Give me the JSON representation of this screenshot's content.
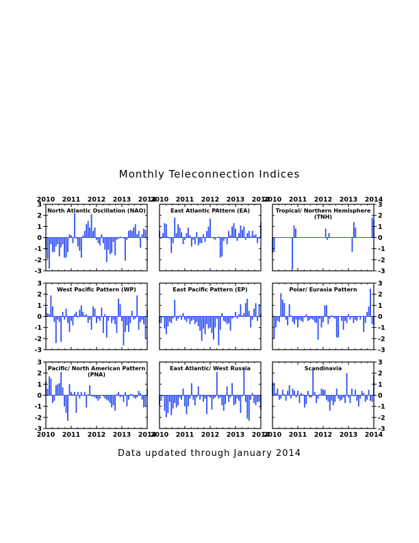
{
  "page": {
    "title": "Monthly Teleconnection Indices",
    "footer": "Data updated through January 2014",
    "bar_color": "#2f4ff0"
  },
  "chart_data": [
    {
      "type": "bar",
      "title": "North Atlantic Oscillation (NAO)",
      "x_start": "2010-01",
      "x_end": "2014-01",
      "xticks": [
        "2010",
        "2011",
        "2012",
        "2013",
        "2014"
      ],
      "ylim": [
        -3,
        3
      ],
      "yticks": [
        "3",
        "2",
        "1",
        "0",
        "-1",
        "-2",
        "-3"
      ],
      "values": [
        -1.1,
        -1.9,
        -2.8,
        -0.6,
        -1.3,
        -1.3,
        -0.8,
        -0.6,
        -1.7,
        -0.9,
        -0.6,
        -1.8,
        -1.8,
        -1.3,
        0.3,
        0.2,
        -0.5,
        2.2,
        -0.1,
        -0.8,
        -1.2,
        -1.8,
        0.2,
        0.6,
        1.2,
        1.5,
        0.9,
        2.1,
        0.6,
        0.9,
        -0.2,
        -0.5,
        -0.7,
        0.3,
        -0.5,
        -1.1,
        -2.2,
        -1.1,
        -1.5,
        -1.4,
        -0.4,
        -1.6,
        -0.2,
        -0.1,
        0.1,
        0.0,
        -0.1,
        -2.1,
        -0.2,
        0.6,
        0.7,
        0.6,
        0.9,
        1.2,
        0.3,
        0.6,
        -0.9,
        0.3,
        0.8,
        0.7,
        -0.2
      ]
    },
    {
      "type": "bar",
      "title": "East Atlantic PAttern (EA)",
      "x_start": "2010-01",
      "x_end": "2014-01",
      "xticks": [
        "2010",
        "2011",
        "2012",
        "2013",
        "2014"
      ],
      "ylim": [
        -3,
        3
      ],
      "yticks": [
        "3",
        "2",
        "1",
        "0",
        "-1",
        "-2",
        "-3"
      ],
      "values": [
        0.6,
        -0.1,
        0.4,
        1.3,
        1.2,
        0.1,
        -0.1,
        -1.4,
        -0.5,
        1.8,
        0.4,
        1.2,
        0.9,
        0.5,
        -0.6,
        -0.2,
        0.4,
        0.9,
        0.2,
        -0.8,
        -0.2,
        -0.6,
        0.5,
        -0.7,
        -0.5,
        -0.5,
        0.3,
        -0.4,
        0.6,
        1.0,
        1.7,
        0.0,
        -0.1,
        -0.2,
        0.0,
        0.1,
        -1.8,
        -1.7,
        -0.3,
        -0.1,
        -0.6,
        0.6,
        0.2,
        1.0,
        1.3,
        0.8,
        -0.3,
        0.4,
        1.1,
        0.7,
        1.0,
        -0.2,
        0.4,
        0.6,
        0.1,
        0.6,
        0.2,
        0.3,
        -0.5,
        -0.1,
        1.4
      ]
    },
    {
      "type": "bar",
      "title": "Tropical/ Northern Hemisphere (TNH)",
      "x_start": "2010-01",
      "x_end": "2014-01",
      "xticks": [
        "2010",
        "2011",
        "2012",
        "2013",
        "2014"
      ],
      "ylim": [
        -3,
        3
      ],
      "yticks": [
        "3",
        "2",
        "1",
        "0",
        "-1",
        "-2",
        "-3"
      ],
      "values": [
        -1.4,
        -1.3,
        0,
        0,
        0,
        0,
        0,
        0,
        0,
        0,
        0,
        0,
        -2.9,
        1.1,
        0.8,
        0,
        0,
        0,
        0,
        0,
        0,
        0,
        0,
        0,
        0,
        0,
        0,
        0,
        0,
        0,
        0,
        0,
        0.8,
        -0.2,
        0.4,
        0,
        0,
        0,
        0,
        0,
        0,
        0,
        0,
        0,
        0,
        0,
        0,
        0,
        -1.3,
        1.4,
        0.9,
        0,
        0,
        0,
        0,
        0,
        0,
        0,
        0,
        0,
        1.8,
        1.6
      ]
    },
    {
      "type": "bar",
      "title": "West Pacific Pattern (WP)",
      "x_start": "2010-01",
      "x_end": "2014-01",
      "xticks": [
        "2010",
        "2011",
        "2012",
        "2013",
        "2014"
      ],
      "ylim": [
        -3,
        3
      ],
      "yticks": [
        "3",
        "2",
        "1",
        "0",
        "-1",
        "-2",
        "-3"
      ],
      "values": [
        0.8,
        0.3,
        0.2,
        1.9,
        0.9,
        -0.5,
        -2.4,
        -0.3,
        -0.5,
        -2.3,
        0.4,
        -0.3,
        0.7,
        -0.6,
        -1.4,
        -0.4,
        -0.8,
        0.2,
        0.4,
        -0.1,
        0.6,
        1.0,
        0.4,
        0.1,
        0.2,
        -0.6,
        -0.3,
        -1.2,
        0.9,
        0.7,
        -0.6,
        -0.2,
        -0.4,
        0.8,
        -1.5,
        0.2,
        -1.9,
        -0.4,
        0.0,
        -0.6,
        -0.3,
        -0.7,
        -1.5,
        1.6,
        1.1,
        -0.4,
        -2.6,
        -1.4,
        -0.8,
        -1.4,
        -0.6,
        0.5,
        -0.3,
        -0.2,
        1.9,
        -1.2,
        -0.5,
        -0.3,
        -0.7,
        -2.0,
        0.6
      ]
    },
    {
      "type": "bar",
      "title": "East Pacific Pattern (EP)",
      "x_start": "2010-01",
      "x_end": "2014-01",
      "xticks": [
        "2010",
        "2011",
        "2012",
        "2013",
        "2014"
      ],
      "ylim": [
        -3,
        3
      ],
      "yticks": [
        "3",
        "2",
        "1",
        "0",
        "-1",
        "-2",
        "-3"
      ],
      "values": [
        -0.6,
        -0.6,
        -0.1,
        -1.1,
        -1.6,
        -0.9,
        -0.5,
        -0.6,
        -0.2,
        1.5,
        -0.4,
        -0.2,
        0.1,
        -0.3,
        0.3,
        -0.3,
        -0.5,
        -0.2,
        -0.7,
        -0.4,
        -0.3,
        -0.7,
        -0.5,
        -0.9,
        -1.3,
        -2.2,
        -1.1,
        -1.6,
        -0.7,
        -1.1,
        -1.0,
        -1.5,
        -2.1,
        -1.0,
        -0.2,
        -2.6,
        -1.2,
        0.3,
        -0.4,
        -0.5,
        -0.7,
        -0.6,
        -1.3,
        -0.2,
        -0.1,
        0.4,
        -0.2,
        0.2,
        1.1,
        0.1,
        0.3,
        1.2,
        1.6,
        0.5,
        -1.0,
        -0.3,
        0.7,
        1.2,
        -0.4,
        1.1,
        0.2
      ]
    },
    {
      "type": "bar",
      "title": "Polar/ Eurasia Pattern",
      "x_start": "2010-01",
      "x_end": "2014-01",
      "xticks": [
        "2010",
        "2011",
        "2012",
        "2013",
        "2014"
      ],
      "ylim": [
        -3,
        3
      ],
      "yticks": [
        "3",
        "2",
        "1",
        "0",
        "-1",
        "-2",
        "-3"
      ],
      "values": [
        0.1,
        -2.0,
        -1.0,
        -0.4,
        -0.5,
        2.1,
        1.5,
        1.2,
        -0.3,
        -0.8,
        1.1,
        0.1,
        -0.5,
        -0.7,
        -0.3,
        -1.0,
        -0.3,
        -0.4,
        -0.5,
        -0.1,
        0.2,
        -0.4,
        -0.3,
        -0.2,
        -0.3,
        -0.5,
        -0.6,
        -2.1,
        -0.2,
        -1.0,
        -0.5,
        1.0,
        1.0,
        -0.7,
        -0.2,
        0.1,
        -0.1,
        -0.2,
        -1.9,
        -1.9,
        0.0,
        -0.4,
        -1.2,
        -0.4,
        -0.6,
        0.2,
        -0.3,
        -0.1,
        -0.6,
        -0.3,
        -0.4,
        0.0,
        -0.3,
        0.0,
        -1.4,
        -0.6,
        0.4,
        0.9,
        2.5,
        -0.7,
        -0.8
      ]
    },
    {
      "type": "bar",
      "title": "Pacific/ North American Pattern (PNA)",
      "x_start": "2010-01",
      "x_end": "2014-01",
      "xticks": [
        "2010",
        "2011",
        "2012",
        "2013",
        "2014"
      ],
      "ylim": [
        -3,
        3
      ],
      "yticks": [
        "3",
        "2",
        "1",
        "0",
        "-1",
        "-2",
        "-3"
      ],
      "values": [
        1.3,
        0.6,
        1.7,
        1.5,
        -0.7,
        -0.5,
        0.9,
        1.0,
        1.1,
        2.1,
        0.7,
        -1.0,
        -1.6,
        -2.3,
        1.0,
        0.3,
        0.1,
        0.3,
        -1.6,
        0.3,
        -0.3,
        0.3,
        0.0,
        0.3,
        -1.1,
        0.1,
        0.9,
        -0.1,
        -0.1,
        -0.2,
        -0.3,
        -0.5,
        -0.3,
        0.0,
        -0.1,
        -0.3,
        -0.4,
        -0.5,
        -0.7,
        -1.1,
        -0.9,
        -1.4,
        0.1,
        0.3,
        -0.2,
        -0.1,
        -0.6,
        0.3,
        -1.0,
        -0.4,
        0.1,
        0.1,
        -0.2,
        -0.3,
        -0.2,
        0.4,
        0.2,
        -0.4,
        -1.1,
        -1.0,
        0.6
      ]
    },
    {
      "type": "bar",
      "title": "East Atlantic/ West Russia",
      "x_start": "2010-01",
      "x_end": "2014-01",
      "xticks": [
        "2010",
        "2011",
        "2012",
        "2013",
        "2014"
      ],
      "ylim": [
        -3,
        3
      ],
      "yticks": [
        "3",
        "2",
        "1",
        "0",
        "-1",
        "-2",
        "-3"
      ],
      "values": [
        -0.9,
        -0.5,
        -0.1,
        -1.4,
        -2.0,
        -1.6,
        -0.6,
        -1.8,
        -1.2,
        -0.7,
        -1.1,
        -0.9,
        -0.2,
        -0.4,
        0.6,
        -1.0,
        -1.7,
        -1.0,
        -0.3,
        1.1,
        -0.4,
        -0.9,
        -0.2,
        0.8,
        -0.4,
        -0.1,
        -0.6,
        -0.3,
        -1.7,
        -0.1,
        -0.2,
        -1.3,
        -0.3,
        -0.2,
        2.1,
        -0.3,
        -0.2,
        -0.9,
        -1.4,
        -0.8,
        0.8,
        -0.6,
        -0.2,
        1.1,
        -0.9,
        -0.8,
        -0.3,
        -0.5,
        -1.6,
        -0.1,
        2.5,
        -0.6,
        -2.1,
        -2.3,
        -0.4,
        0.2,
        -0.7,
        -0.9,
        -0.6,
        -0.6,
        -1.3
      ]
    },
    {
      "type": "bar",
      "title": "Scandinavia",
      "x_start": "2010-01",
      "x_end": "2014-01",
      "xticks": [
        "2010",
        "2011",
        "2012",
        "2013",
        "2014"
      ],
      "ylim": [
        -3,
        3
      ],
      "yticks": [
        "3",
        "2",
        "1",
        "0",
        "-1",
        "-2",
        "-3"
      ],
      "values": [
        1.2,
        1.1,
        0.2,
        0.6,
        -0.4,
        -0.3,
        0.5,
        0.1,
        -0.5,
        0.4,
        0.9,
        -0.3,
        0.6,
        0.4,
        -0.2,
        0.4,
        -0.7,
        0.2,
        0.1,
        -1.1,
        -0.8,
        0.4,
        -0.2,
        -0.2,
        2.3,
        0.3,
        -0.7,
        -0.3,
        0.1,
        0.6,
        0.5,
        0.5,
        -0.4,
        -0.6,
        -1.4,
        -0.5,
        -0.9,
        -0.6,
        0.6,
        -0.3,
        -0.5,
        -0.4,
        -0.2,
        -0.7,
        2.0,
        -0.2,
        -0.7,
        0.6,
        -0.1,
        0.5,
        -0.5,
        -1.0,
        -0.3,
        0.4,
        0.2,
        -0.6,
        -0.4,
        0.5,
        -0.5,
        -0.6,
        1.8
      ]
    }
  ]
}
